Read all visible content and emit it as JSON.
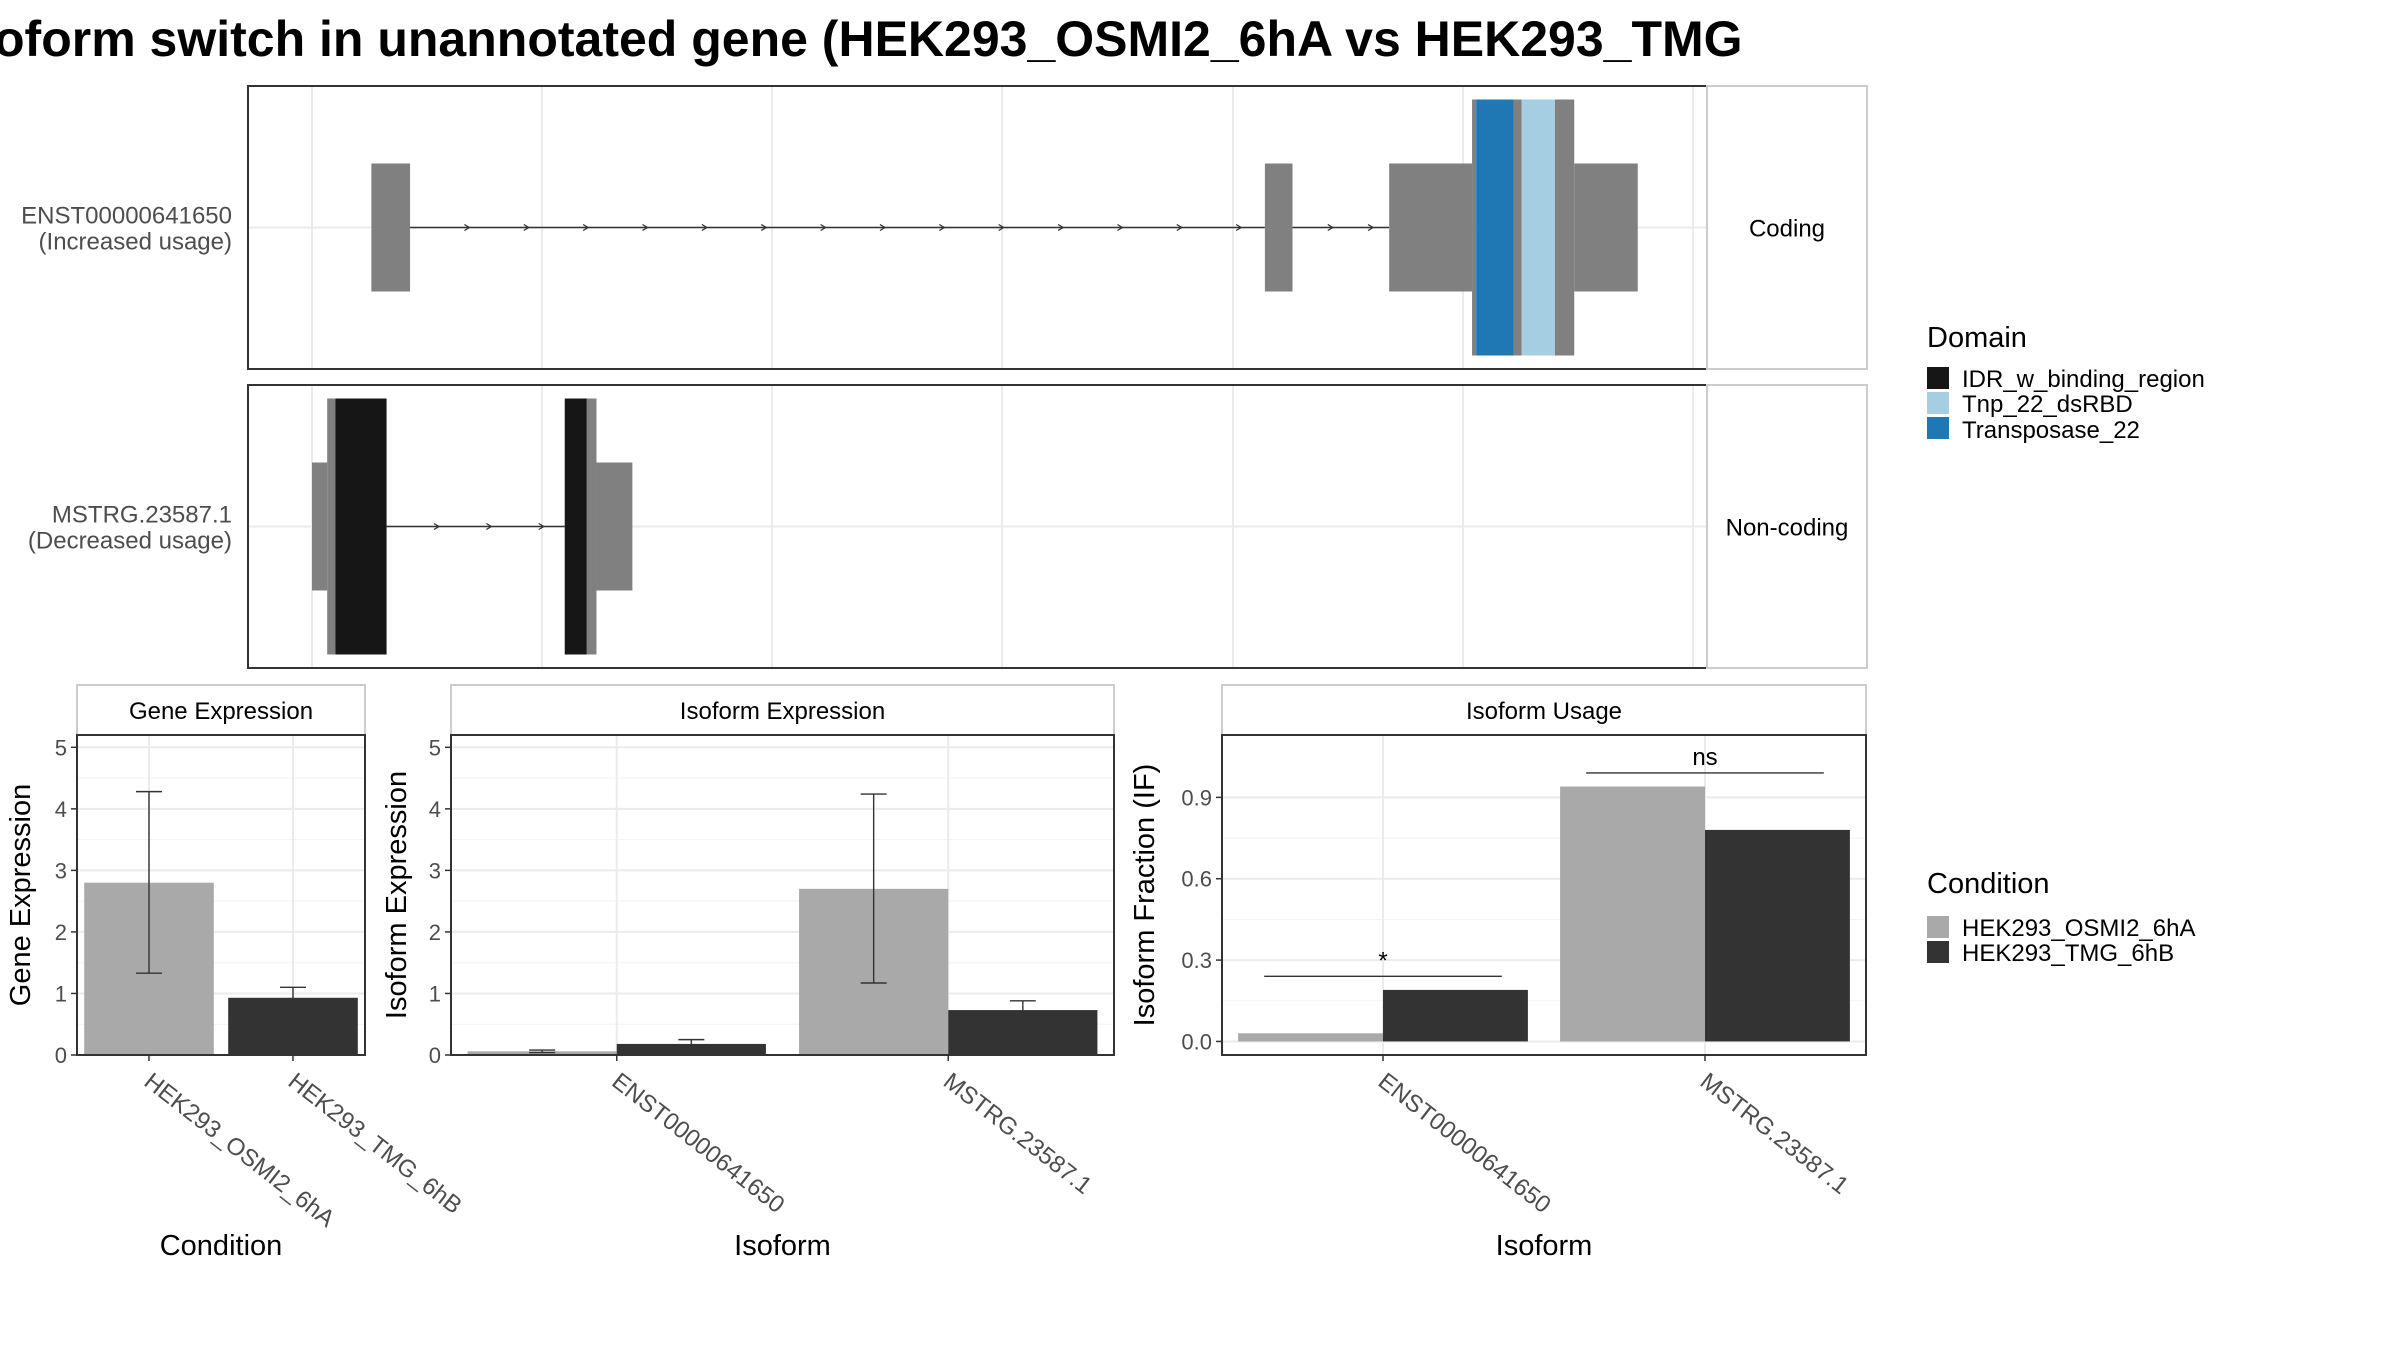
{
  "title": "oform switch in unannotated gene (HEK293_OSMI2_6hA vs HEK293_TMG",
  "colors": {
    "cond_a": "#A9A9A9",
    "cond_b": "#333333",
    "exon": "#808080",
    "IDR_w_binding_region": "#161616",
    "Tnp_22_dsRBD": "#A6CEE3",
    "Transposase_22": "#1F78B4",
    "grid": "#EBEBEB",
    "frame": "#333333"
  },
  "chart_data": [
    {
      "type": "transcript_structure",
      "transcripts": [
        {
          "label": "ENST00000641650",
          "sublabel": "(Increased usage)",
          "strip": "Coding",
          "exons": [
            [
              0.043,
              0.071,
              "small"
            ],
            [
              0.69,
              0.71,
              "small"
            ],
            [
              0.78,
              0.84,
              "large"
            ],
            [
              0.84,
              0.843,
              "xlarge"
            ],
            [
              0.843,
              0.87,
              "xlarge",
              "Transposase_22"
            ],
            [
              0.87,
              0.876,
              "xlarge"
            ],
            [
              0.876,
              0.9,
              "xlarge",
              "Tnp_22_dsRBD"
            ],
            [
              0.9,
              0.914,
              "xlarge"
            ],
            [
              0.914,
              0.96,
              "large"
            ]
          ],
          "intron_arrows": 16
        },
        {
          "label": "MSTRG.23587.1",
          "sublabel": "(Decreased usage)",
          "strip": "Non-coding",
          "exons": [
            [
              0.0,
              0.011,
              "small"
            ],
            [
              0.011,
              0.017,
              "xlarge"
            ],
            [
              0.017,
              0.054,
              "xlarge",
              "IDR_w_binding_region"
            ],
            [
              0.183,
              0.199,
              "xlarge",
              "IDR_w_binding_region"
            ],
            [
              0.199,
              0.206,
              "xlarge"
            ],
            [
              0.206,
              0.232,
              "small"
            ]
          ],
          "intron_arrows": 3
        }
      ],
      "legend": {
        "title": "Domain",
        "entries": [
          "IDR_w_binding_region",
          "Tnp_22_dsRBD",
          "Transposase_22"
        ]
      }
    },
    {
      "type": "bar",
      "panel": "Gene Expression",
      "xlabel": "Condition",
      "ylabel": "Gene Expression",
      "ylim": [
        0,
        5.2
      ],
      "yticks": [
        0,
        1,
        2,
        3,
        4,
        5
      ],
      "categories": [
        "HEK293_OSMI2_6hA",
        "HEK293_TMG_6hB"
      ],
      "series": [
        {
          "name": "HEK293_OSMI2_6hA",
          "values": [
            2.8,
            null
          ],
          "err_low": [
            1.33,
            null
          ],
          "err_high": [
            4.28,
            null
          ]
        },
        {
          "name": "HEK293_TMG_6hB",
          "values": [
            null,
            0.93
          ],
          "err_low": [
            null,
            0.8
          ],
          "err_high": [
            null,
            1.1
          ]
        }
      ]
    },
    {
      "type": "bar",
      "panel": "Isoform Expression",
      "xlabel": "Isoform",
      "ylabel": "Isoform Expression",
      "ylim": [
        0,
        5.2
      ],
      "yticks": [
        0,
        1,
        2,
        3,
        4,
        5
      ],
      "categories": [
        "ENST00000641650",
        "MSTRG.23587.1"
      ],
      "series": [
        {
          "name": "HEK293_OSMI2_6hA",
          "values": [
            0.06,
            2.7
          ],
          "err_low": [
            0.04,
            1.17
          ],
          "err_high": [
            0.08,
            4.24
          ]
        },
        {
          "name": "HEK293_TMG_6hB",
          "values": [
            0.18,
            0.73
          ],
          "err_low": [
            0.12,
            0.58
          ],
          "err_high": [
            0.25,
            0.88
          ]
        }
      ]
    },
    {
      "type": "bar",
      "panel": "Isoform Usage",
      "xlabel": "Isoform",
      "ylabel": "Isoform Fraction (IF)",
      "ylim": [
        -0.05,
        1.13
      ],
      "yticks": [
        0.0,
        0.3,
        0.6,
        0.9
      ],
      "ytick_labels": [
        "0.0",
        "0.3",
        "0.6",
        "0.9"
      ],
      "categories": [
        "ENST00000641650",
        "MSTRG.23587.1"
      ],
      "series": [
        {
          "name": "HEK293_OSMI2_6hA",
          "values": [
            0.03,
            0.94
          ]
        },
        {
          "name": "HEK293_TMG_6hB",
          "values": [
            0.19,
            0.78
          ]
        }
      ],
      "significance": [
        {
          "category": "ENST00000641650",
          "label": "*",
          "y": 0.24
        },
        {
          "category": "MSTRG.23587.1",
          "label": "ns",
          "y": 0.99
        }
      ]
    }
  ],
  "condition_legend": {
    "title": "Condition",
    "entries": [
      "HEK293_OSMI2_6hA",
      "HEK293_TMG_6hB"
    ]
  }
}
